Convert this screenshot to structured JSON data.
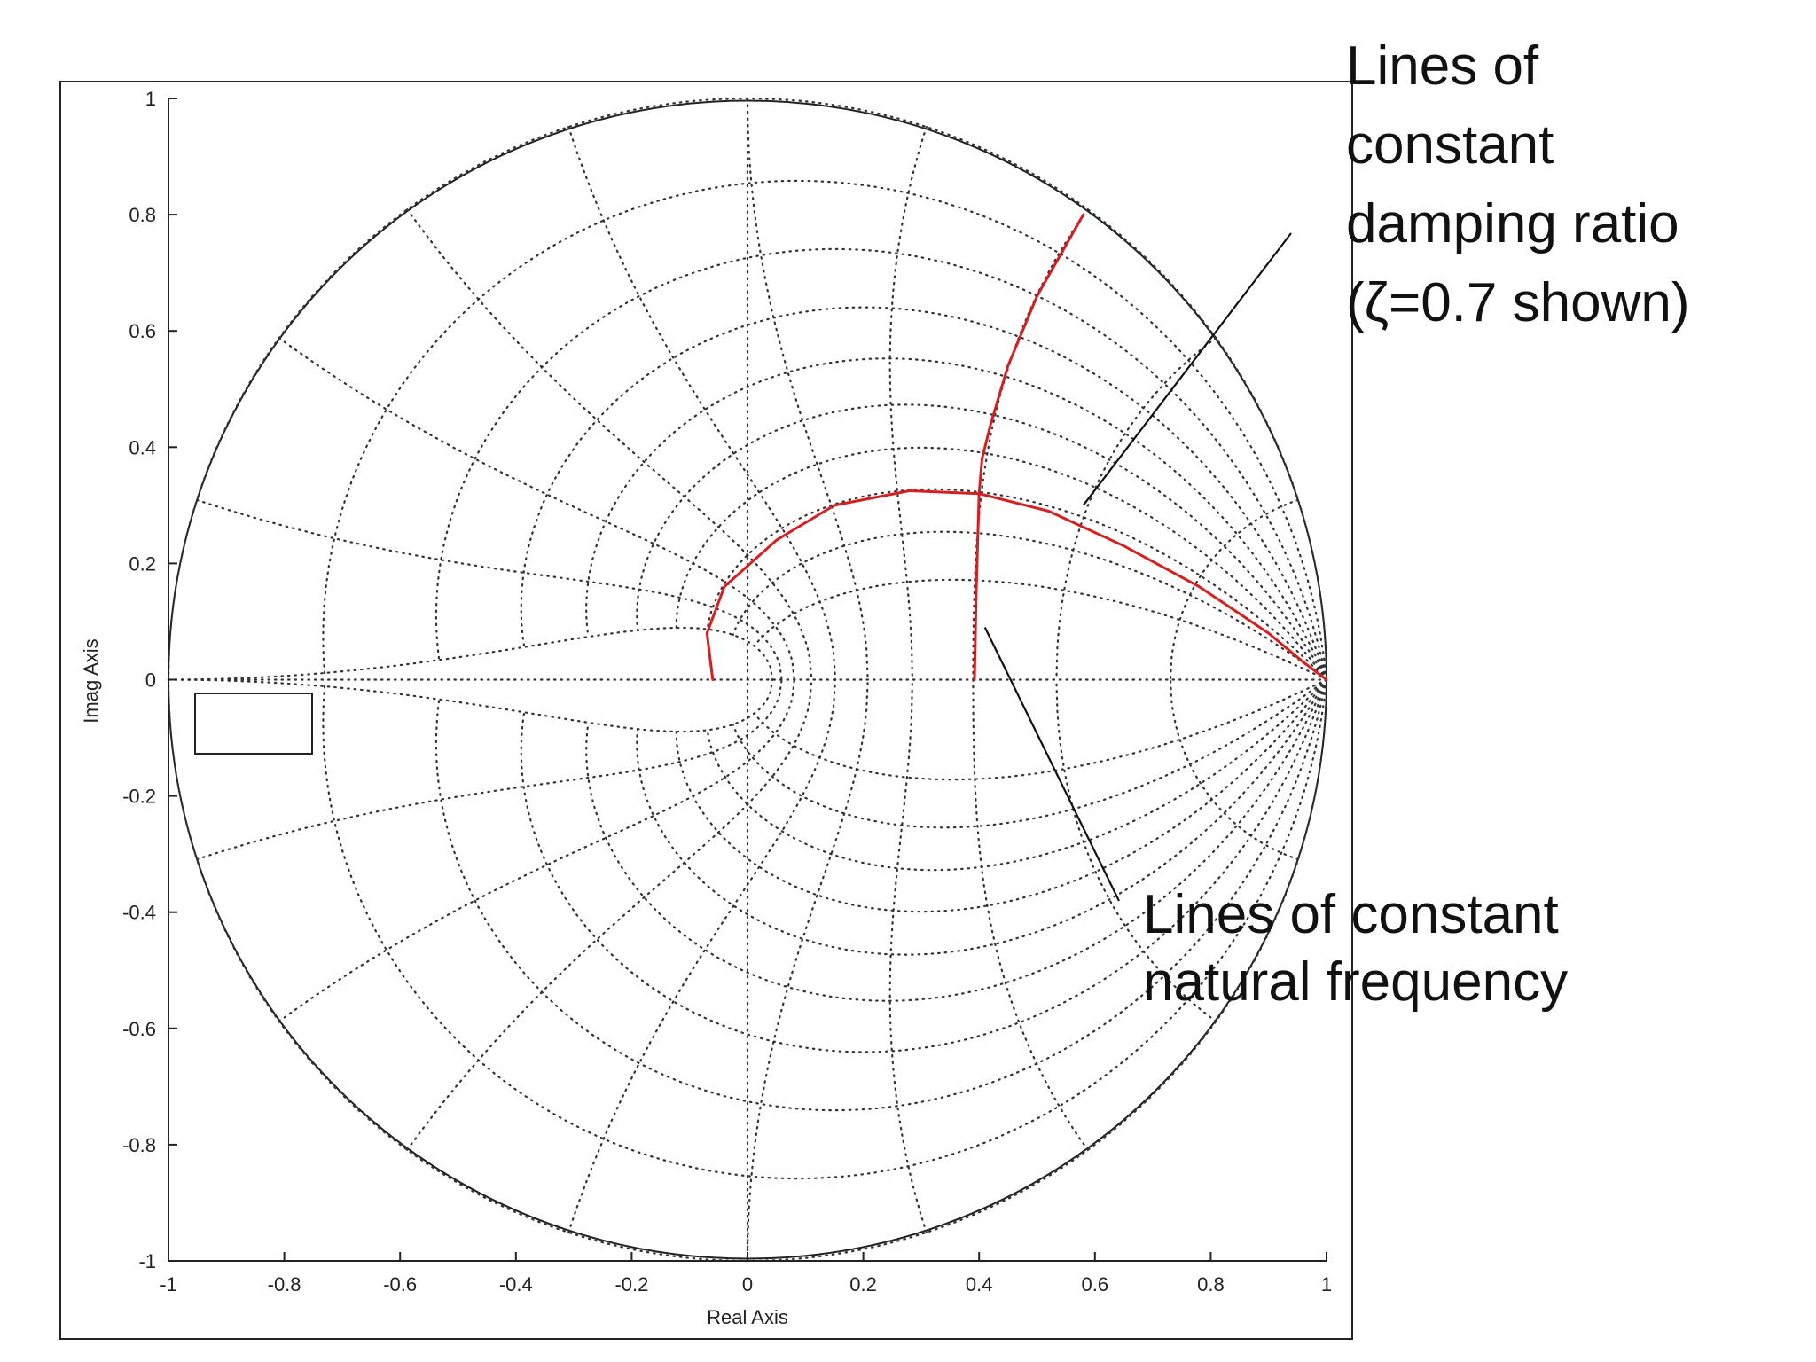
{
  "chart_data": {
    "type": "line",
    "title": "",
    "xlabel": "Real Axis",
    "ylabel": "Imag Axis",
    "xlim": [
      -1,
      1
    ],
    "ylim": [
      -1,
      1
    ],
    "x_ticks": [
      "-1",
      "-0.8",
      "-0.6",
      "-0.4",
      "-0.2",
      "0",
      "0.2",
      "0.4",
      "0.6",
      "0.8",
      "1"
    ],
    "y_ticks": [
      "1",
      "0.8",
      "0.6",
      "0.4",
      "0.2",
      "0",
      "-0.2",
      "-0.4",
      "-0.6",
      "-0.8",
      "-1"
    ],
    "grid": "zgrid",
    "unit_circle": true,
    "series": [
      {
        "color": "#d42020",
        "points": [
          [
            0.58,
            0.8
          ],
          [
            0.5,
            0.66
          ],
          [
            0.45,
            0.54
          ],
          [
            0.42,
            0.44
          ],
          [
            0.405,
            0.38
          ],
          [
            0.4,
            0.32
          ],
          [
            0.395,
            0.15
          ],
          [
            0.392,
            0.0
          ]
        ]
      },
      {
        "color": "#d42020",
        "points": [
          [
            -0.06,
            0.0
          ],
          [
            -0.07,
            0.08
          ],
          [
            -0.04,
            0.16
          ],
          [
            0.05,
            0.24
          ],
          [
            0.15,
            0.3
          ],
          [
            0.28,
            0.325
          ],
          [
            0.4,
            0.32
          ],
          [
            0.52,
            0.29
          ],
          [
            0.65,
            0.23
          ],
          [
            0.78,
            0.16
          ],
          [
            0.9,
            0.08
          ],
          [
            0.96,
            0.03
          ],
          [
            1.0,
            0.0
          ]
        ]
      }
    ],
    "annotations": [
      {
        "lines": [
          "Lines of",
          "constant",
          "damping ratio",
          "(ζ=0.7 shown)"
        ],
        "point_to": [
          0.58,
          0.3
        ]
      },
      {
        "lines": [
          "Lines of constant",
          "natural frequency"
        ],
        "point_to": [
          0.41,
          0.09
        ]
      }
    ]
  }
}
